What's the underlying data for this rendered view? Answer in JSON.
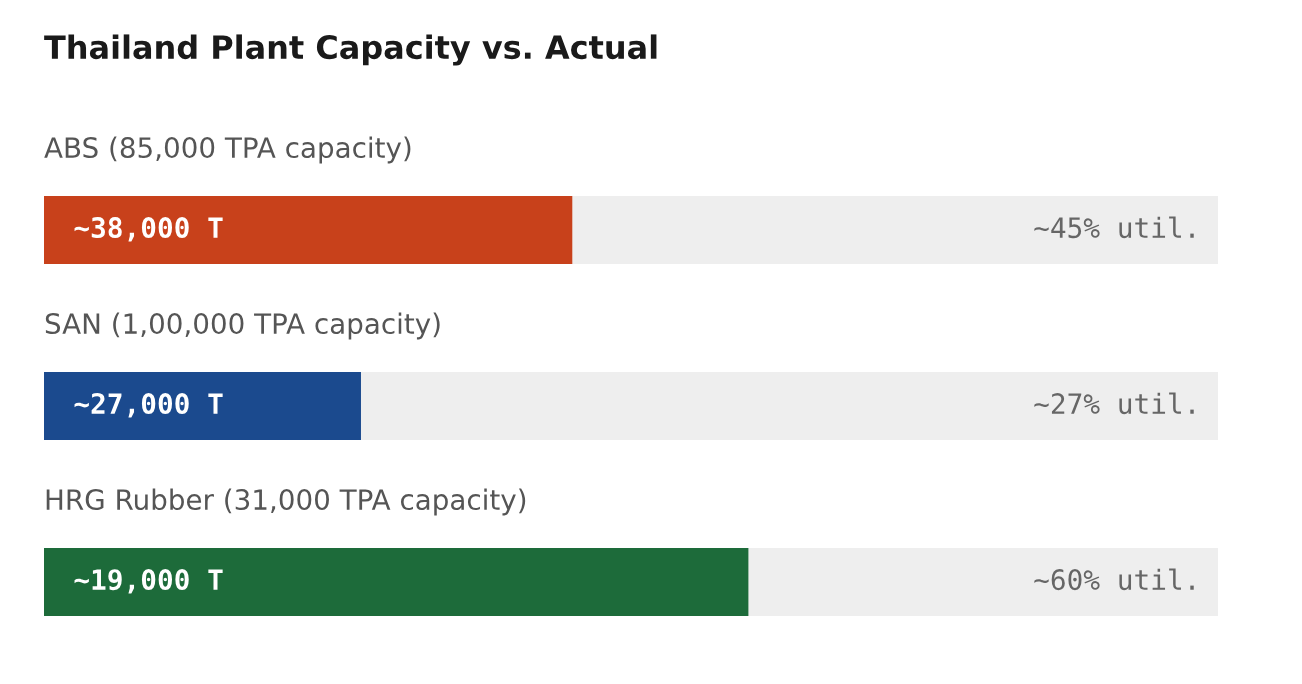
{
  "chart_data": {
    "type": "bar",
    "orientation": "horizontal",
    "title": "Thailand Plant Capacity vs. Actual",
    "categories": [
      "ABS (85,000 TPA capacity)",
      "SAN (1,00,000 TPA capacity)",
      "HRG Rubber (31,000 TPA capacity)"
    ],
    "values": [
      45,
      27,
      60
    ],
    "colors": [
      "#c8411b",
      "#1b4a8e",
      "#1d6b3a"
    ],
    "value_labels": [
      "~45% util.",
      "~27% util.",
      "~60% util."
    ],
    "annotations": [
      "~38,000 T",
      "~27,000 T",
      "~19,000 T"
    ],
    "xlim": [
      0,
      100
    ],
    "tick_labels": false
  }
}
